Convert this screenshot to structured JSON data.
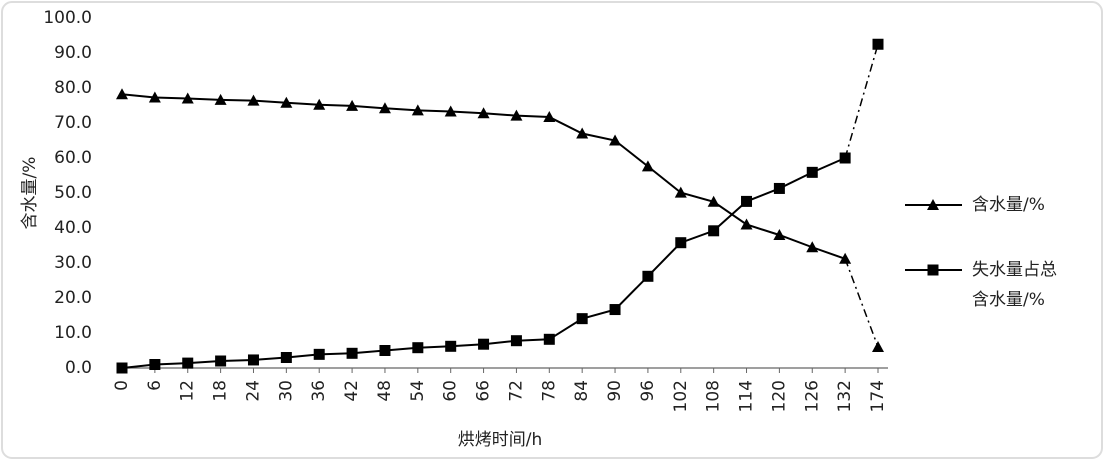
{
  "chart_data": {
    "type": "line",
    "y_label": "含水量/%",
    "x_label": "烘烤时间/h",
    "categories": [
      "0",
      "6",
      "12",
      "18",
      "24",
      "30",
      "36",
      "42",
      "48",
      "54",
      "60",
      "66",
      "72",
      "78",
      "84",
      "90",
      "96",
      "102",
      "108",
      "114",
      "120",
      "126",
      "132",
      "174"
    ],
    "series": [
      {
        "name": "含水量/%",
        "color": "#000000",
        "marker": "triangle",
        "dash_last": true,
        "values": [
          78.2,
          77.3,
          77.0,
          76.6,
          76.4,
          75.8,
          75.2,
          74.9,
          74.2,
          73.6,
          73.3,
          72.8,
          72.1,
          71.7,
          67.0,
          65.0,
          57.6,
          50.1,
          47.5,
          41.0,
          38.0,
          34.5,
          31.2,
          6.0
        ]
      },
      {
        "name": "失水量占总含水量/%",
        "color": "#000000",
        "marker": "square",
        "dash_last": true,
        "values": [
          0.0,
          1.0,
          1.4,
          2.0,
          2.3,
          3.0,
          3.9,
          4.2,
          5.0,
          5.8,
          6.2,
          6.8,
          7.8,
          8.2,
          14.1,
          16.7,
          26.2,
          35.8,
          39.2,
          47.6,
          51.3,
          55.9,
          60.0,
          92.5
        ]
      }
    ],
    "ylim": [
      0,
      100
    ],
    "yticks": [
      {
        "value": 0,
        "label": "0.0"
      },
      {
        "value": 10,
        "label": "10.0"
      },
      {
        "value": 20,
        "label": "20.0"
      },
      {
        "value": 30,
        "label": "30.0"
      },
      {
        "value": 40,
        "label": "40.0"
      },
      {
        "value": 50,
        "label": "50.0"
      },
      {
        "value": 60,
        "label": "60.0"
      },
      {
        "value": 70,
        "label": "70.0"
      },
      {
        "value": 80,
        "label": "80.0"
      },
      {
        "value": 90,
        "label": "90.0"
      },
      {
        "value": 100,
        "label": "100.0"
      }
    ],
    "grid": false
  }
}
